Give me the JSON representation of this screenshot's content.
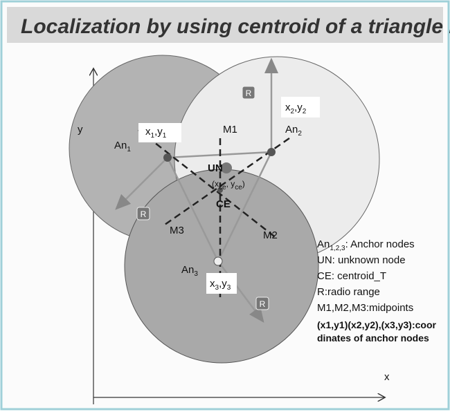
{
  "title": "Localization by using centroid of a triangle method",
  "axes": {
    "y": "y",
    "x": "x"
  },
  "labels": [
    {
      "parts": [
        "An",
        "1"
      ]
    },
    {
      "parts": [
        "x",
        "1",
        ",y",
        "1"
      ]
    },
    {
      "parts": [
        "x",
        "2",
        ",y",
        "2"
      ]
    },
    {
      "parts": [
        "M1"
      ]
    },
    {
      "parts": [
        "An",
        "2"
      ]
    },
    {
      "parts": [
        "UN"
      ]
    },
    {
      "parts": [
        "(x",
        "ce",
        ", y",
        "ce",
        ")"
      ]
    },
    {
      "parts": [
        "CE"
      ]
    },
    {
      "parts": [
        "M3"
      ]
    },
    {
      "parts": [
        "M2"
      ]
    },
    {
      "parts": [
        "An",
        "3"
      ]
    },
    {
      "parts": [
        "x",
        "3",
        ",y",
        "3"
      ]
    }
  ],
  "range_tags": [
    "R",
    "R",
    "R"
  ],
  "legend": [
    {
      "parts": [
        "An",
        "1,2,3",
        ": Anchor nodes"
      ]
    },
    {
      "parts": [
        "UN:  unknown node"
      ]
    },
    {
      "parts": [
        "CE: centroid_T"
      ]
    },
    {
      "parts": [
        "R:radio range"
      ]
    },
    {
      "parts": [
        "M1,M2,M3:midpoints"
      ]
    },
    {
      "parts": [
        "(x1,y1)(x2,y2),(x3,y3):coor"
      ]
    },
    {
      "parts": [
        "dinates of anchor nodes"
      ]
    }
  ]
}
